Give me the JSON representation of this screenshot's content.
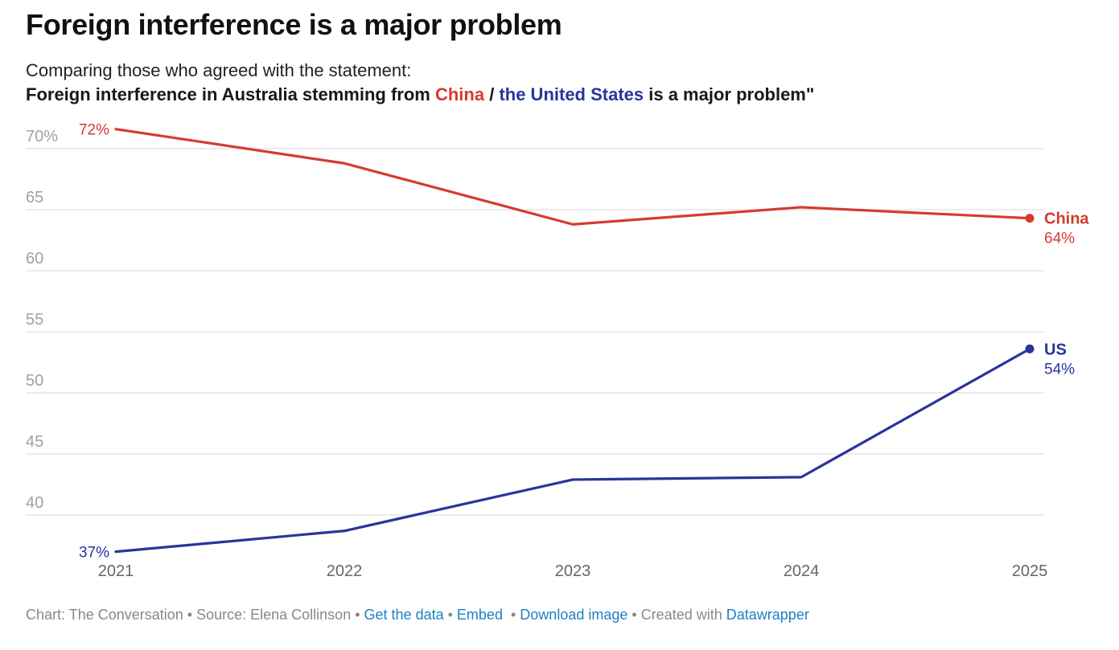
{
  "title": "Foreign interference is a major problem",
  "subtitle": {
    "line1": "Comparing those who agreed with the statement:",
    "line2_prefix": "Foreign interference in Australia stemming from ",
    "line2_china": "China",
    "line2_slash": " / ",
    "line2_us": "the United States",
    "line2_suffix": " is a major problem\""
  },
  "colors": {
    "china": "#d63a2f",
    "us": "#2a349a",
    "grid": "#e6e6e6",
    "axis_text": "#a0a0a0",
    "link": "#1d81c4"
  },
  "chart_data": {
    "type": "line",
    "title": "Foreign interference is a major problem",
    "xlabel": "",
    "ylabel": "",
    "x": [
      2021,
      2022,
      2023,
      2024,
      2025
    ],
    "x_tick_labels": [
      "2021",
      "2022",
      "2023",
      "2024",
      "2025"
    ],
    "y_ticks": [
      40,
      45,
      50,
      55,
      60,
      65,
      70
    ],
    "y_tick_labels": [
      "40",
      "45",
      "50",
      "55",
      "60",
      "65",
      "70%"
    ],
    "ylim": [
      35.5,
      73
    ],
    "grid": true,
    "legend": "inline-right",
    "series": [
      {
        "name": "China",
        "color": "#d63a2f",
        "values": [
          71.6,
          68.8,
          63.8,
          65.2,
          64.3
        ],
        "start_label": "72%",
        "end_label_name": "China",
        "end_label_value": "64%"
      },
      {
        "name": "US",
        "color": "#2a349a",
        "values": [
          37.0,
          38.7,
          42.9,
          43.1,
          53.6
        ],
        "start_label": "37%",
        "end_label_name": "US",
        "end_label_value": "54%"
      }
    ]
  },
  "footer": {
    "chart_credit": "Chart: The Conversation",
    "source": "Source: Elena Collinson",
    "get_data": "Get the data",
    "embed": "Embed",
    "download": "Download image",
    "created_with": "Created with",
    "datawrapper": "Datawrapper",
    "separator": " • "
  }
}
